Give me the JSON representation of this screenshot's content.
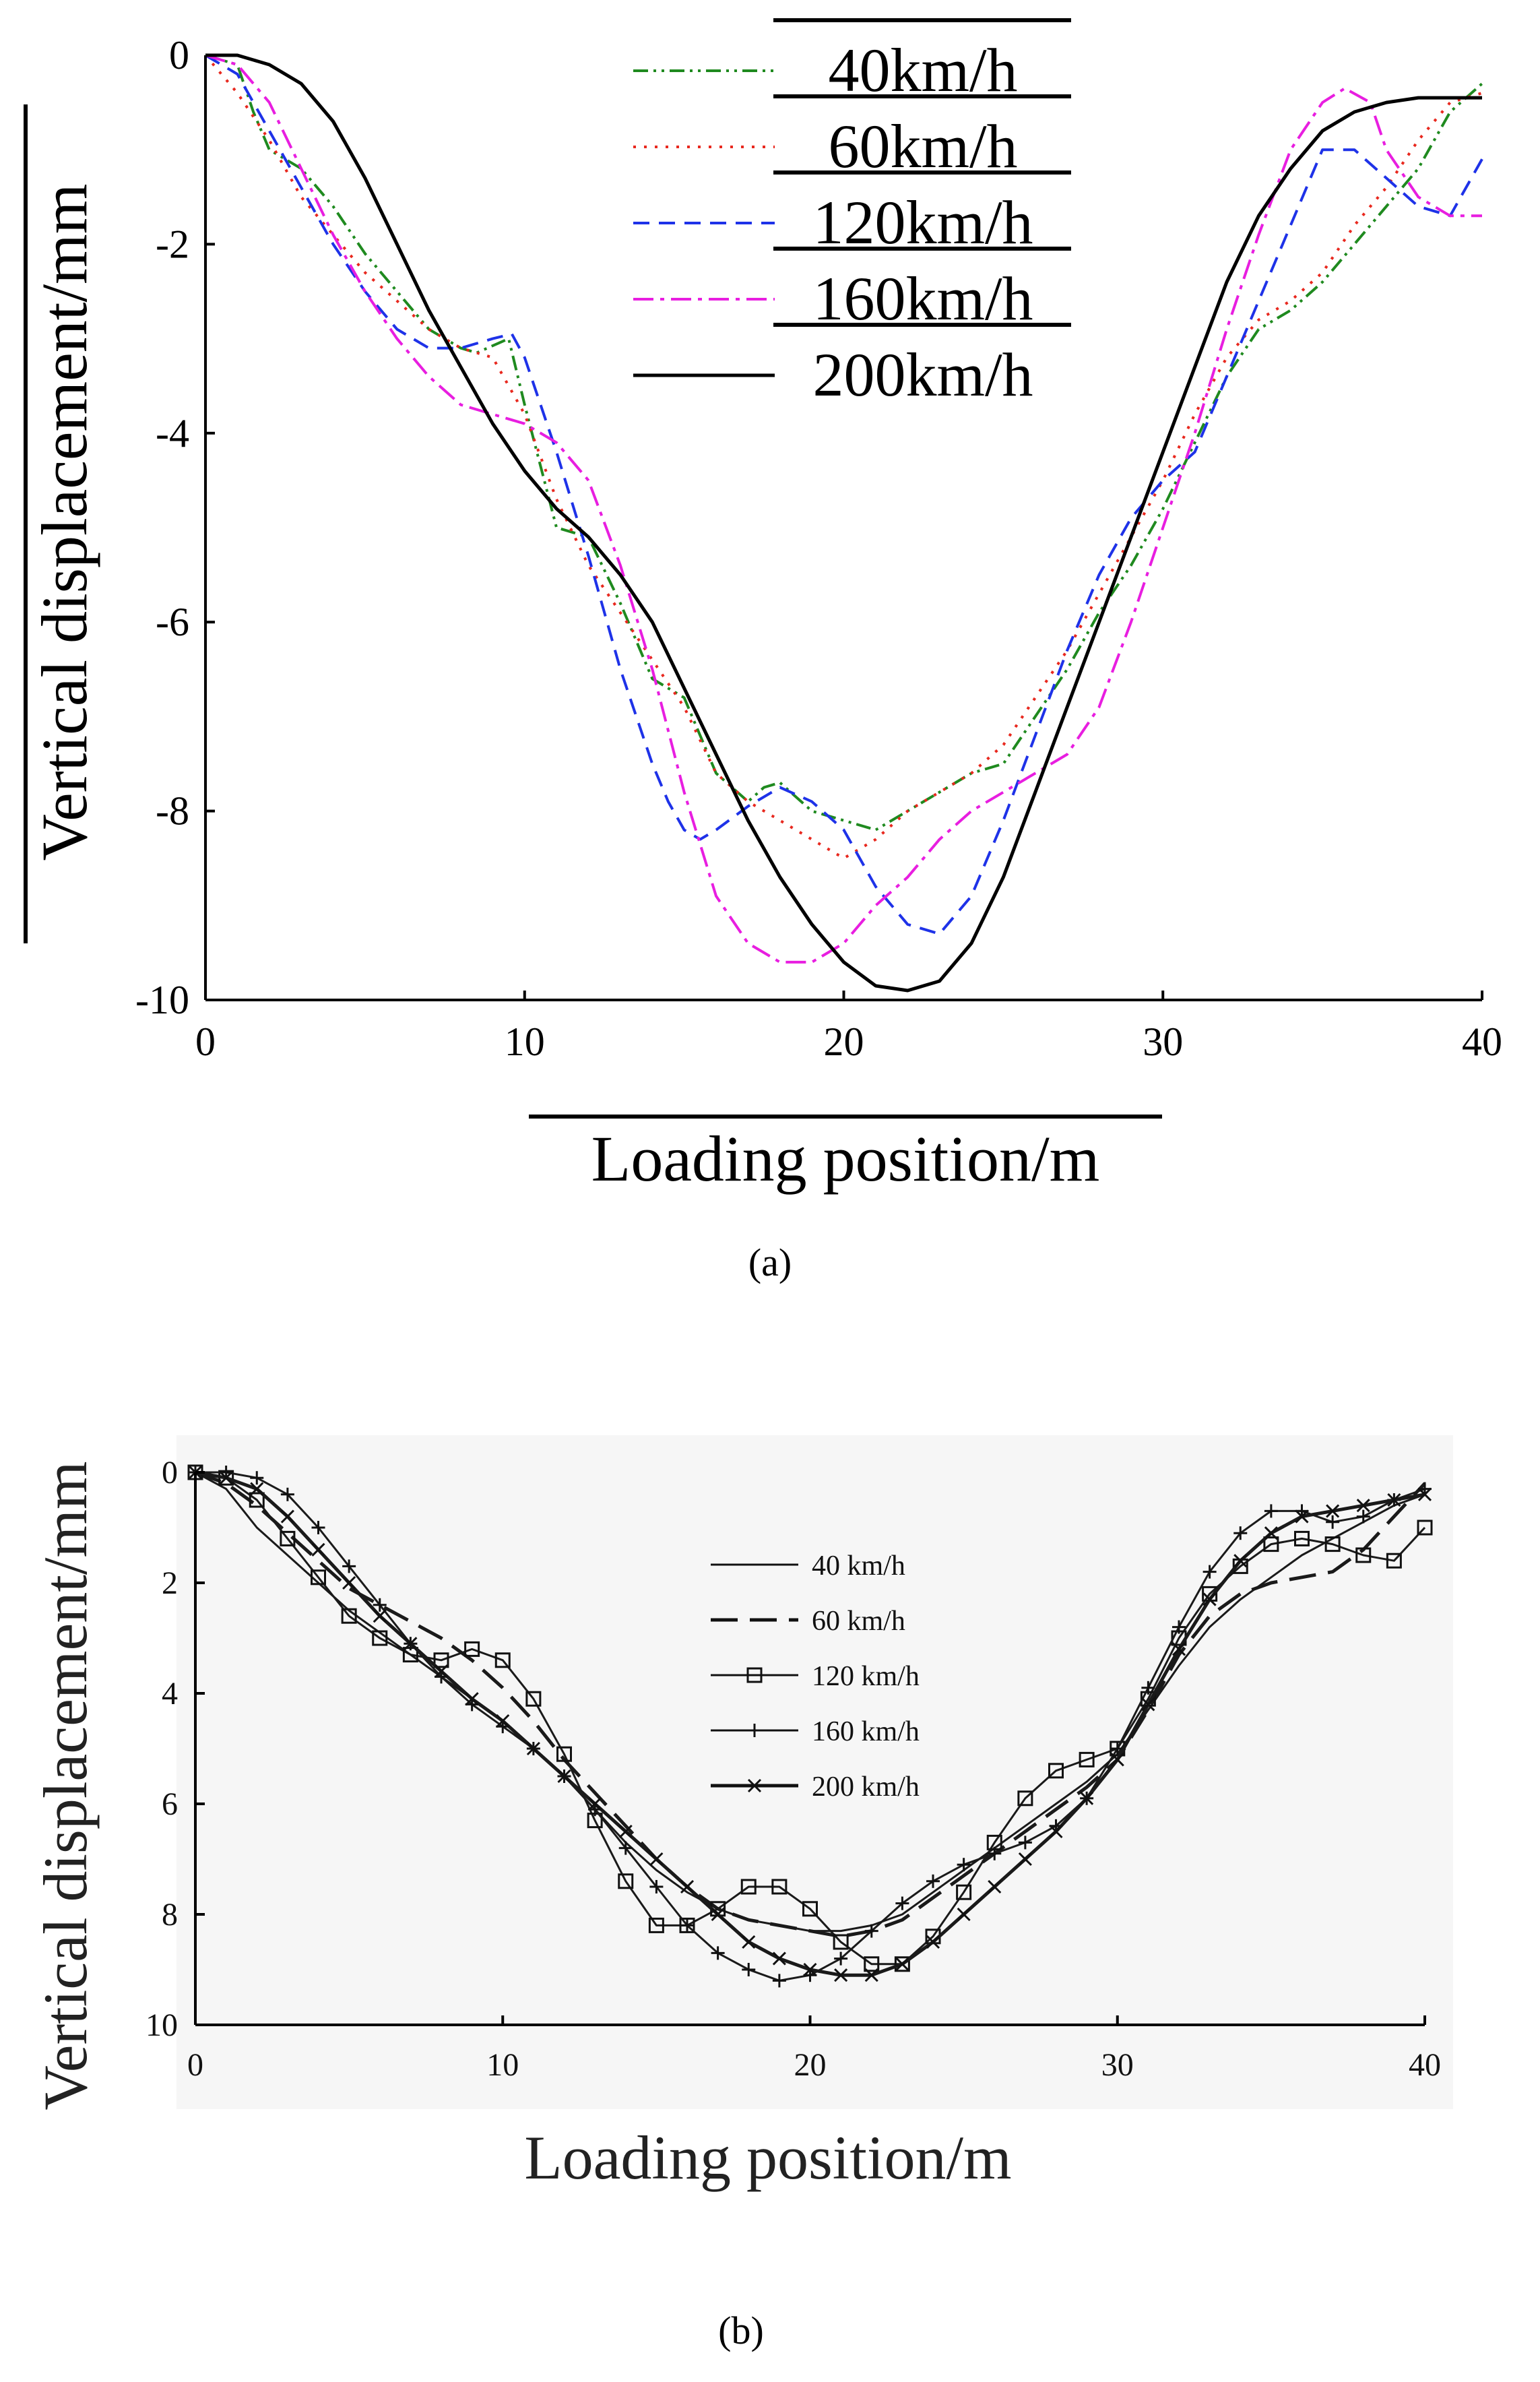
{
  "chart_data": [
    {
      "type": "line",
      "panel_label": "(a)",
      "xlabel": "Loading position/m",
      "ylabel": "Vertical displacement/mm",
      "xlim": [
        0,
        40
      ],
      "ylim": [
        -10,
        0
      ],
      "xticks": [
        "0",
        "10",
        "20",
        "30",
        "40"
      ],
      "yticks": [
        "0",
        "-2",
        "-4",
        "-6",
        "-8",
        "-10"
      ],
      "legend_position": "top-center",
      "series": [
        {
          "name": "40km/h",
          "color": "#1f8a1f",
          "style": "dash-dot-dot",
          "x": [
            0,
            1,
            1.5,
            2,
            3,
            4,
            5,
            6,
            7,
            8,
            8.5,
            9.5,
            10,
            11,
            12,
            13,
            14,
            15,
            16,
            17,
            17.5,
            18,
            19,
            20,
            21,
            22,
            23,
            24,
            25,
            26,
            27,
            28,
            29,
            30,
            31,
            32,
            33,
            34,
            35,
            36,
            37,
            38,
            39,
            40
          ],
          "y": [
            0,
            -0.1,
            -0.6,
            -1.0,
            -1.2,
            -1.6,
            -2.1,
            -2.5,
            -2.9,
            -3.1,
            -3.15,
            -3.0,
            -3.7,
            -5.0,
            -5.1,
            -5.8,
            -6.6,
            -6.8,
            -7.6,
            -7.9,
            -7.75,
            -7.7,
            -8.0,
            -8.1,
            -8.2,
            -8.0,
            -7.8,
            -7.6,
            -7.5,
            -7.0,
            -6.5,
            -5.9,
            -5.4,
            -4.8,
            -4.1,
            -3.4,
            -2.9,
            -2.7,
            -2.4,
            -2.0,
            -1.6,
            -1.2,
            -0.6,
            -0.3
          ]
        },
        {
          "name": "60km/h",
          "color": "#e8281e",
          "style": "dotted",
          "x": [
            0,
            1,
            2,
            3,
            4,
            5,
            6,
            7,
            8,
            9,
            10,
            11,
            12,
            13,
            14,
            15,
            16,
            17,
            18,
            19,
            20,
            21,
            22,
            23,
            24,
            25,
            26,
            27,
            28,
            29,
            30,
            31,
            32,
            33,
            34,
            35,
            36,
            37,
            38,
            39,
            40
          ],
          "y": [
            0,
            -0.4,
            -0.9,
            -1.5,
            -1.9,
            -2.3,
            -2.6,
            -2.9,
            -3.1,
            -3.2,
            -3.8,
            -4.7,
            -5.4,
            -5.9,
            -6.4,
            -6.9,
            -7.6,
            -7.9,
            -8.1,
            -8.3,
            -8.5,
            -8.3,
            -8.0,
            -7.8,
            -7.6,
            -7.3,
            -6.8,
            -6.3,
            -5.7,
            -5.1,
            -4.5,
            -3.8,
            -3.2,
            -2.8,
            -2.6,
            -2.3,
            -1.8,
            -1.4,
            -0.9,
            -0.5,
            -0.4
          ]
        },
        {
          "name": "120km/h",
          "color": "#1e32e8",
          "style": "dashed",
          "x": [
            0,
            1,
            2,
            3,
            4,
            5,
            6,
            7,
            8,
            9,
            9.6,
            10,
            11,
            12,
            13,
            14,
            14.5,
            15,
            15.5,
            16,
            17,
            18,
            19,
            20,
            21,
            22,
            23,
            24,
            25,
            26,
            27,
            28,
            29,
            30,
            31,
            32,
            33,
            34,
            35,
            36,
            37,
            38,
            39,
            40
          ],
          "y": [
            0,
            -0.2,
            -0.8,
            -1.4,
            -2.0,
            -2.5,
            -2.9,
            -3.1,
            -3.1,
            -3.0,
            -2.95,
            -3.2,
            -4.2,
            -5.3,
            -6.5,
            -7.5,
            -7.9,
            -8.2,
            -8.3,
            -8.2,
            -7.95,
            -7.75,
            -7.9,
            -8.2,
            -8.8,
            -9.2,
            -9.3,
            -8.9,
            -8.1,
            -7.2,
            -6.3,
            -5.5,
            -4.9,
            -4.5,
            -4.2,
            -3.4,
            -2.6,
            -1.8,
            -1.0,
            -1.0,
            -1.3,
            -1.6,
            -1.7,
            -1.1
          ]
        },
        {
          "name": "160km/h",
          "color": "#e81ee0",
          "style": "dash-dot",
          "x": [
            0,
            1,
            2,
            3,
            4,
            5,
            6,
            7,
            8,
            9,
            10,
            11,
            12,
            13,
            14,
            15,
            16,
            17,
            18,
            19,
            20,
            21,
            22,
            23,
            24,
            25,
            26,
            27,
            28,
            29,
            30,
            31,
            32,
            33,
            34,
            35,
            35.7,
            36.5,
            37,
            38,
            39,
            40
          ],
          "y": [
            0,
            -0.1,
            -0.5,
            -1.2,
            -1.9,
            -2.5,
            -3.0,
            -3.4,
            -3.7,
            -3.8,
            -3.9,
            -4.1,
            -4.5,
            -5.4,
            -6.5,
            -7.8,
            -8.9,
            -9.4,
            -9.6,
            -9.6,
            -9.4,
            -9.0,
            -8.7,
            -8.3,
            -8.0,
            -7.8,
            -7.6,
            -7.4,
            -6.9,
            -6.0,
            -5.0,
            -4.0,
            -2.9,
            -1.9,
            -1.0,
            -0.5,
            -0.35,
            -0.5,
            -1.0,
            -1.5,
            -1.7,
            -1.7
          ]
        },
        {
          "name": "200km/h",
          "color": "#000000",
          "style": "solid",
          "x": [
            0,
            1,
            1.5,
            2,
            3,
            4,
            5,
            6,
            7,
            8,
            9,
            10,
            11,
            12,
            13,
            14,
            15,
            16,
            17,
            18,
            19,
            20,
            21,
            22,
            23,
            24,
            25,
            26,
            27,
            28,
            29,
            30,
            31,
            32,
            33,
            34,
            35,
            36,
            37,
            38,
            39,
            40
          ],
          "y": [
            0,
            0,
            -0.05,
            -0.1,
            -0.3,
            -0.7,
            -1.3,
            -2.0,
            -2.7,
            -3.3,
            -3.9,
            -4.4,
            -4.8,
            -5.1,
            -5.5,
            -6.0,
            -6.7,
            -7.4,
            -8.1,
            -8.7,
            -9.2,
            -9.6,
            -9.85,
            -9.9,
            -9.8,
            -9.4,
            -8.7,
            -7.8,
            -6.9,
            -6.0,
            -5.1,
            -4.2,
            -3.3,
            -2.4,
            -1.7,
            -1.2,
            -0.8,
            -0.6,
            -0.5,
            -0.45,
            -0.45,
            -0.45
          ]
        }
      ]
    },
    {
      "type": "line",
      "panel_label": "(b)",
      "xlabel": "Loading position/m",
      "ylabel": "Vertical displacement/mm",
      "xlim": [
        0,
        40
      ],
      "ylim": [
        10,
        0
      ],
      "xticks": [
        "0",
        "10",
        "20",
        "30",
        "40"
      ],
      "yticks": [
        "0",
        "2",
        "4",
        "6",
        "8",
        "10"
      ],
      "legend_position": "top-center",
      "series": [
        {
          "name": "40 km/h",
          "marker": "thin-line",
          "x": [
            0,
            1,
            2,
            3,
            4,
            5,
            6,
            7,
            8,
            9,
            10,
            11,
            12,
            13,
            14,
            15,
            16,
            17,
            18,
            19,
            20,
            21,
            22,
            23,
            24,
            25,
            26,
            27,
            28,
            29,
            30,
            31,
            32,
            33,
            34,
            35,
            36,
            37,
            38,
            39,
            40
          ],
          "y": [
            0,
            0.3,
            1.0,
            1.5,
            2.0,
            2.5,
            2.9,
            3.3,
            3.7,
            4.1,
            4.5,
            5.0,
            5.5,
            6.1,
            6.7,
            7.2,
            7.6,
            7.9,
            8.1,
            8.2,
            8.3,
            8.3,
            8.2,
            8.0,
            7.6,
            7.2,
            6.8,
            6.4,
            6.0,
            5.6,
            5.1,
            4.3,
            3.5,
            2.8,
            2.3,
            1.9,
            1.5,
            1.2,
            0.9,
            0.6,
            0.4
          ]
        },
        {
          "name": "60 km/h",
          "marker": "long-dash",
          "x": [
            0,
            1,
            2,
            3,
            4,
            5,
            6,
            7,
            8,
            9,
            10,
            11,
            12,
            13,
            14,
            15,
            16,
            17,
            18,
            19,
            20,
            21,
            22,
            23,
            24,
            25,
            26,
            27,
            28,
            29,
            30,
            31,
            32,
            33,
            34,
            35,
            36,
            37,
            38,
            39,
            40
          ],
          "y": [
            0,
            0.2,
            0.6,
            1.1,
            1.6,
            2.1,
            2.4,
            2.7,
            3.0,
            3.4,
            3.9,
            4.5,
            5.2,
            5.8,
            6.4,
            7.0,
            7.5,
            7.9,
            8.1,
            8.2,
            8.3,
            8.4,
            8.3,
            8.1,
            7.7,
            7.3,
            6.9,
            6.5,
            6.1,
            5.7,
            5.2,
            4.3,
            3.3,
            2.6,
            2.2,
            2.0,
            1.9,
            1.8,
            1.4,
            0.8,
            0.2
          ]
        },
        {
          "name": "120 km/h",
          "marker": "square",
          "x": [
            0,
            1,
            2,
            3,
            4,
            5,
            6,
            7,
            8,
            9,
            10,
            11,
            12,
            13,
            14,
            15,
            16,
            17,
            18,
            19,
            20,
            21,
            22,
            23,
            24,
            25,
            26,
            27,
            28,
            29,
            30,
            31,
            32,
            33,
            34,
            35,
            36,
            37,
            38,
            39,
            40
          ],
          "y": [
            0,
            0.1,
            0.5,
            1.2,
            1.9,
            2.6,
            3.0,
            3.3,
            3.4,
            3.2,
            3.4,
            4.1,
            5.1,
            6.3,
            7.4,
            8.2,
            8.2,
            7.9,
            7.5,
            7.5,
            7.9,
            8.5,
            8.9,
            8.9,
            8.4,
            7.6,
            6.7,
            5.9,
            5.4,
            5.2,
            5.0,
            4.1,
            3.0,
            2.2,
            1.7,
            1.3,
            1.2,
            1.3,
            1.5,
            1.6,
            1.0
          ]
        },
        {
          "name": "160 km/h",
          "marker": "plus",
          "x": [
            0,
            1,
            2,
            3,
            4,
            5,
            6,
            7,
            8,
            9,
            10,
            11,
            12,
            13,
            14,
            15,
            16,
            17,
            18,
            19,
            20,
            21,
            22,
            23,
            24,
            25,
            26,
            27,
            28,
            29,
            30,
            31,
            32,
            33,
            34,
            35,
            36,
            37,
            38,
            39,
            40
          ],
          "y": [
            0,
            0.0,
            0.1,
            0.4,
            1.0,
            1.7,
            2.4,
            3.1,
            3.7,
            4.2,
            4.6,
            5.0,
            5.5,
            6.1,
            6.8,
            7.5,
            8.2,
            8.7,
            9.0,
            9.2,
            9.1,
            8.8,
            8.3,
            7.8,
            7.4,
            7.1,
            6.9,
            6.7,
            6.4,
            5.9,
            5.0,
            3.9,
            2.8,
            1.8,
            1.1,
            0.7,
            0.7,
            0.9,
            0.8,
            0.5,
            0.3
          ]
        },
        {
          "name": "200 km/h",
          "marker": "cross",
          "x": [
            0,
            1,
            2,
            3,
            4,
            5,
            6,
            7,
            8,
            9,
            10,
            11,
            12,
            13,
            14,
            15,
            16,
            17,
            18,
            19,
            20,
            21,
            22,
            23,
            24,
            25,
            26,
            27,
            28,
            29,
            30,
            31,
            32,
            33,
            34,
            35,
            36,
            37,
            38,
            39,
            40
          ],
          "y": [
            0,
            0.1,
            0.3,
            0.8,
            1.4,
            2.0,
            2.6,
            3.1,
            3.6,
            4.1,
            4.5,
            5.0,
            5.5,
            6.0,
            6.5,
            7.0,
            7.5,
            8.0,
            8.5,
            8.8,
            9.0,
            9.1,
            9.1,
            8.9,
            8.5,
            8.0,
            7.5,
            7.0,
            6.5,
            5.9,
            5.2,
            4.2,
            3.2,
            2.3,
            1.6,
            1.1,
            0.8,
            0.7,
            0.6,
            0.5,
            0.4
          ]
        }
      ]
    }
  ]
}
